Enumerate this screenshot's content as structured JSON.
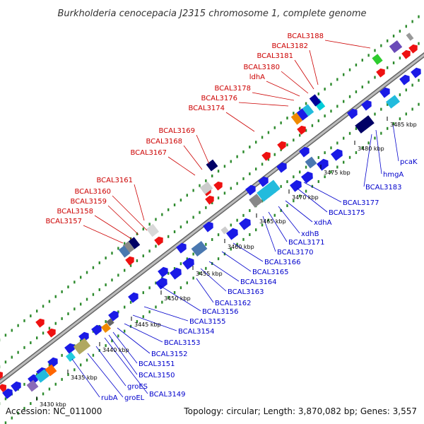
{
  "title": "Burkholderia cenocepacia J2315 chromosome 1, complete genome",
  "footer": {
    "accession": "Accession: NC_011000",
    "summary": "Topology: circular; Length: 3,870,082 bp; Genes: 3,557"
  },
  "colors": {
    "backbone": "#8c8c8c",
    "dots": "#2e8b2e",
    "red_gene": "#ee1111",
    "blue_gene": "#1a1ae6",
    "red_label": "#cc0000",
    "blue_label": "#0000cc"
  },
  "scale_ticks": [
    "3430 kbp",
    "3435 kbp",
    "3440 kbp",
    "3445 kbp",
    "3450 kbp",
    "3455 kbp",
    "3460 kbp",
    "3465 kbp",
    "3470 kbp",
    "3475 kbp",
    "3480 kbp",
    "3485 kbp"
  ],
  "genes_top": [
    "BCAL3157",
    "BCAL3158",
    "BCAL3159",
    "BCAL3160",
    "BCAL3161",
    "BCAL3167",
    "BCAL3168",
    "BCAL3169",
    "BCAL3174",
    "BCAL3176",
    "BCAL3178",
    "ldhA",
    "BCAL3180",
    "BCAL3181",
    "BCAL3182",
    "BCAL3188"
  ],
  "genes_bottom": [
    "rubA",
    "groEL",
    "groES",
    "BCAL3149",
    "BCAL3150",
    "BCAL3151",
    "BCAL3152",
    "BCAL3153",
    "BCAL3154",
    "BCAL3155",
    "BCAL3156",
    "BCAL3162",
    "BCAL3163",
    "BCAL3164",
    "BCAL3165",
    "BCAL3166",
    "BCAL3170",
    "BCAL3171",
    "xdhB",
    "xdhA",
    "BCAL3175",
    "BCAL3177",
    "BCAL3183",
    "hmgA",
    "pcaK"
  ]
}
